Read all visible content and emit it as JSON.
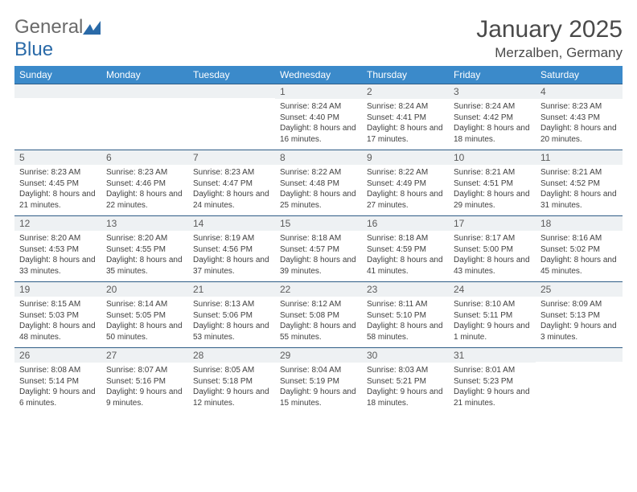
{
  "logo": {
    "word1": "General",
    "word2": "Blue"
  },
  "title": "January 2025",
  "location": "Merzalben, Germany",
  "colors": {
    "header_bg": "#3b8aca",
    "header_text": "#ffffff",
    "rule": "#2f5d86",
    "band": "#eef1f3",
    "body_text": "#404040",
    "logo_gray": "#6a6a6a",
    "logo_blue": "#2a6aa8"
  },
  "day_headers": [
    "Sunday",
    "Monday",
    "Tuesday",
    "Wednesday",
    "Thursday",
    "Friday",
    "Saturday"
  ],
  "weeks": [
    [
      {
        "n": "",
        "sr": "",
        "ss": "",
        "dl": ""
      },
      {
        "n": "",
        "sr": "",
        "ss": "",
        "dl": ""
      },
      {
        "n": "",
        "sr": "",
        "ss": "",
        "dl": ""
      },
      {
        "n": "1",
        "sr": "8:24 AM",
        "ss": "4:40 PM",
        "dl": "8 hours and 16 minutes."
      },
      {
        "n": "2",
        "sr": "8:24 AM",
        "ss": "4:41 PM",
        "dl": "8 hours and 17 minutes."
      },
      {
        "n": "3",
        "sr": "8:24 AM",
        "ss": "4:42 PM",
        "dl": "8 hours and 18 minutes."
      },
      {
        "n": "4",
        "sr": "8:23 AM",
        "ss": "4:43 PM",
        "dl": "8 hours and 20 minutes."
      }
    ],
    [
      {
        "n": "5",
        "sr": "8:23 AM",
        "ss": "4:45 PM",
        "dl": "8 hours and 21 minutes."
      },
      {
        "n": "6",
        "sr": "8:23 AM",
        "ss": "4:46 PM",
        "dl": "8 hours and 22 minutes."
      },
      {
        "n": "7",
        "sr": "8:23 AM",
        "ss": "4:47 PM",
        "dl": "8 hours and 24 minutes."
      },
      {
        "n": "8",
        "sr": "8:22 AM",
        "ss": "4:48 PM",
        "dl": "8 hours and 25 minutes."
      },
      {
        "n": "9",
        "sr": "8:22 AM",
        "ss": "4:49 PM",
        "dl": "8 hours and 27 minutes."
      },
      {
        "n": "10",
        "sr": "8:21 AM",
        "ss": "4:51 PM",
        "dl": "8 hours and 29 minutes."
      },
      {
        "n": "11",
        "sr": "8:21 AM",
        "ss": "4:52 PM",
        "dl": "8 hours and 31 minutes."
      }
    ],
    [
      {
        "n": "12",
        "sr": "8:20 AM",
        "ss": "4:53 PM",
        "dl": "8 hours and 33 minutes."
      },
      {
        "n": "13",
        "sr": "8:20 AM",
        "ss": "4:55 PM",
        "dl": "8 hours and 35 minutes."
      },
      {
        "n": "14",
        "sr": "8:19 AM",
        "ss": "4:56 PM",
        "dl": "8 hours and 37 minutes."
      },
      {
        "n": "15",
        "sr": "8:18 AM",
        "ss": "4:57 PM",
        "dl": "8 hours and 39 minutes."
      },
      {
        "n": "16",
        "sr": "8:18 AM",
        "ss": "4:59 PM",
        "dl": "8 hours and 41 minutes."
      },
      {
        "n": "17",
        "sr": "8:17 AM",
        "ss": "5:00 PM",
        "dl": "8 hours and 43 minutes."
      },
      {
        "n": "18",
        "sr": "8:16 AM",
        "ss": "5:02 PM",
        "dl": "8 hours and 45 minutes."
      }
    ],
    [
      {
        "n": "19",
        "sr": "8:15 AM",
        "ss": "5:03 PM",
        "dl": "8 hours and 48 minutes."
      },
      {
        "n": "20",
        "sr": "8:14 AM",
        "ss": "5:05 PM",
        "dl": "8 hours and 50 minutes."
      },
      {
        "n": "21",
        "sr": "8:13 AM",
        "ss": "5:06 PM",
        "dl": "8 hours and 53 minutes."
      },
      {
        "n": "22",
        "sr": "8:12 AM",
        "ss": "5:08 PM",
        "dl": "8 hours and 55 minutes."
      },
      {
        "n": "23",
        "sr": "8:11 AM",
        "ss": "5:10 PM",
        "dl": "8 hours and 58 minutes."
      },
      {
        "n": "24",
        "sr": "8:10 AM",
        "ss": "5:11 PM",
        "dl": "9 hours and 1 minute."
      },
      {
        "n": "25",
        "sr": "8:09 AM",
        "ss": "5:13 PM",
        "dl": "9 hours and 3 minutes."
      }
    ],
    [
      {
        "n": "26",
        "sr": "8:08 AM",
        "ss": "5:14 PM",
        "dl": "9 hours and 6 minutes."
      },
      {
        "n": "27",
        "sr": "8:07 AM",
        "ss": "5:16 PM",
        "dl": "9 hours and 9 minutes."
      },
      {
        "n": "28",
        "sr": "8:05 AM",
        "ss": "5:18 PM",
        "dl": "9 hours and 12 minutes."
      },
      {
        "n": "29",
        "sr": "8:04 AM",
        "ss": "5:19 PM",
        "dl": "9 hours and 15 minutes."
      },
      {
        "n": "30",
        "sr": "8:03 AM",
        "ss": "5:21 PM",
        "dl": "9 hours and 18 minutes."
      },
      {
        "n": "31",
        "sr": "8:01 AM",
        "ss": "5:23 PM",
        "dl": "9 hours and 21 minutes."
      },
      {
        "n": "",
        "sr": "",
        "ss": "",
        "dl": ""
      }
    ]
  ],
  "labels": {
    "sunrise": "Sunrise:",
    "sunset": "Sunset:",
    "daylight": "Daylight:"
  }
}
